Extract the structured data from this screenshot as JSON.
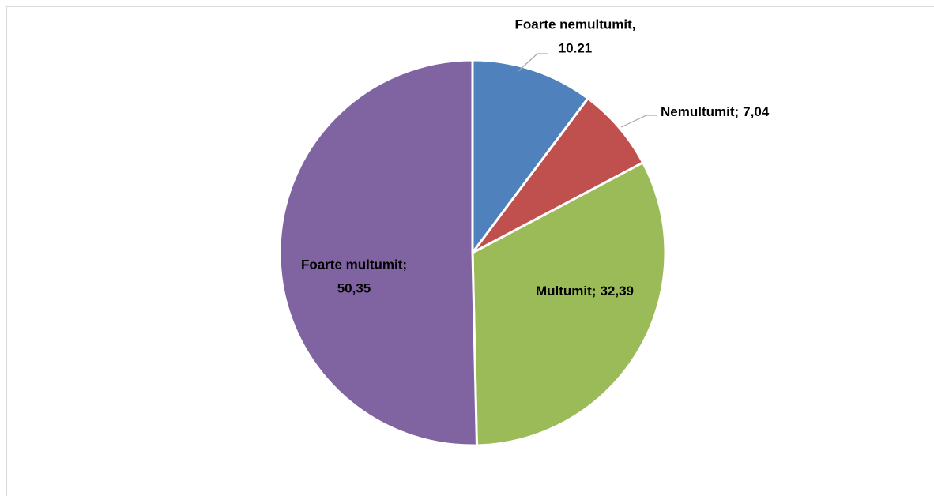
{
  "chart_data": {
    "type": "pie",
    "categories": [
      "Foarte nemultumit,",
      "Nemultumit;",
      "Multumit;",
      "Foarte multumit;"
    ],
    "values": [
      10.21,
      7.04,
      32.39,
      50.35
    ],
    "value_labels": [
      "10.21",
      "7,04",
      "32,39",
      "50,35"
    ],
    "colors": [
      "#4f81bd",
      "#c0504d",
      "#9bbb59",
      "#8064a2"
    ]
  }
}
